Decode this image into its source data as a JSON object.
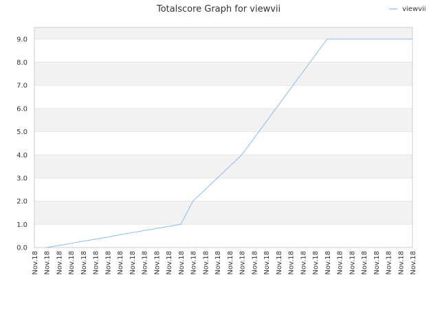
{
  "chart_data": {
    "type": "line",
    "title": "Totalscore Graph for viewvii",
    "xlabel": "",
    "ylabel": "",
    "ylim": [
      0,
      9.5
    ],
    "yticks": [
      0.0,
      1.0,
      2.0,
      3.0,
      4.0,
      5.0,
      6.0,
      7.0,
      8.0,
      9.0
    ],
    "ytick_labels": [
      "0.0",
      "1.0",
      "2.0",
      "3.0",
      "4.0",
      "5.0",
      "6.0",
      "7.0",
      "8.0",
      "9.0"
    ],
    "categories": [
      "Nov.18",
      "Nov.18",
      "Nov.18",
      "Nov.18",
      "Nov.18",
      "Nov.18",
      "Nov.18",
      "Nov.18",
      "Nov.18",
      "Nov.18",
      "Nov.18",
      "Nov.18",
      "Nov.18",
      "Nov.18",
      "Nov.18",
      "Nov.18",
      "Nov.18",
      "Nov.18",
      "Nov.18",
      "Nov.18",
      "Nov.18",
      "Nov.18",
      "Nov.18",
      "Nov.18",
      "Nov.18",
      "Nov.18",
      "Nov.18",
      "Nov.18",
      "Nov.18",
      "Nov.18",
      "Nov.18",
      "Nov.18"
    ],
    "series": [
      {
        "name": "viewvii",
        "color": "#88bbee",
        "values": [
          null,
          0,
          0.09,
          0.18,
          0.27,
          0.36,
          0.45,
          0.55,
          0.64,
          0.73,
          0.82,
          0.91,
          1.0,
          2.0,
          2.5,
          3.0,
          3.5,
          4.0,
          4.71,
          5.43,
          6.14,
          6.86,
          7.57,
          8.29,
          9.0,
          9.0,
          9.0,
          9.0,
          9.0,
          9.0,
          9.0,
          9.0
        ]
      }
    ],
    "grid": true,
    "legend_position": "top-right"
  },
  "colors": {
    "band": "#f2f2f2",
    "grid": "#e6e6e6",
    "axis": "#cccccc"
  }
}
